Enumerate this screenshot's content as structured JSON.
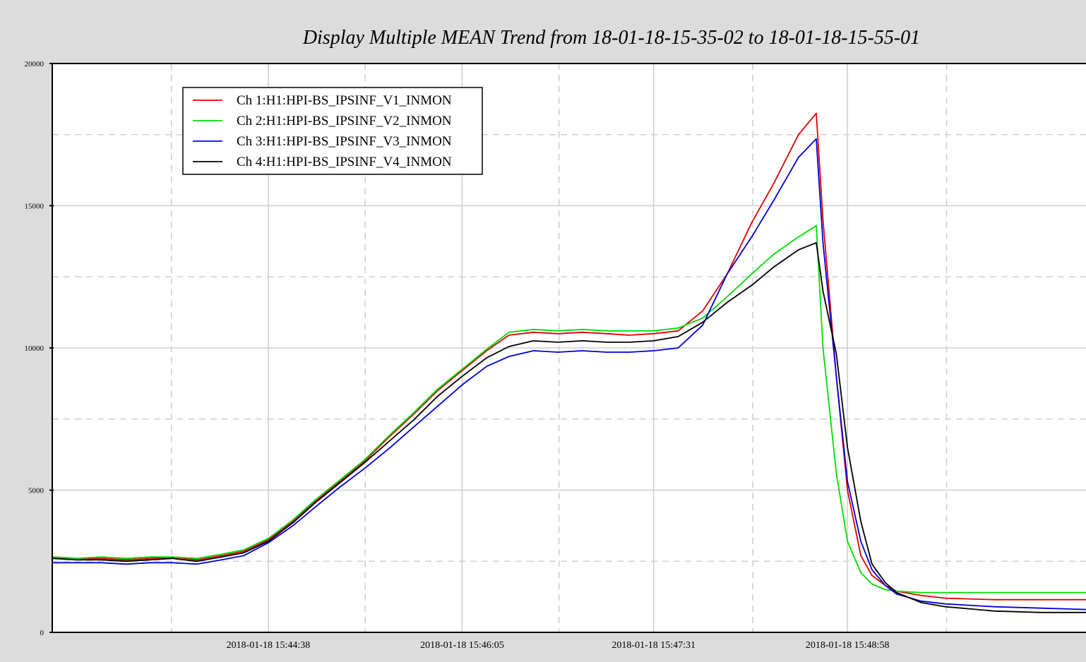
{
  "chart_data": {
    "type": "line",
    "title": "Display Multiple MEAN Trend from 18-01-18-15-35-02 to 18-01-18-15-55-01",
    "xlabel": "",
    "ylabel": "",
    "ylim": [
      0,
      20000
    ],
    "yticks": [
      0,
      5000,
      10000,
      15000,
      20000
    ],
    "xlim": [
      "2018-01-18 15:43:01",
      "2018-01-18 15:50:47"
    ],
    "xticks": [
      "2018-01-18 15:44:38",
      "2018-01-18 15:46:05",
      "2018-01-18 15:47:31",
      "2018-01-18 15:48:58"
    ],
    "grid": true,
    "legend_position": "top-left",
    "x": [
      "2018-01-18 15:43:01",
      "2018-01-18 15:43:12",
      "2018-01-18 15:43:23",
      "2018-01-18 15:43:34",
      "2018-01-18 15:43:45",
      "2018-01-18 15:43:55",
      "2018-01-18 15:44:06",
      "2018-01-18 15:44:17",
      "2018-01-18 15:44:27",
      "2018-01-18 15:44:38",
      "2018-01-18 15:44:49",
      "2018-01-18 15:44:59",
      "2018-01-18 15:45:10",
      "2018-01-18 15:45:21",
      "2018-01-18 15:45:32",
      "2018-01-18 15:45:43",
      "2018-01-18 15:45:54",
      "2018-01-18 15:46:05",
      "2018-01-18 15:46:16",
      "2018-01-18 15:46:26",
      "2018-01-18 15:46:37",
      "2018-01-18 15:46:48",
      "2018-01-18 15:46:59",
      "2018-01-18 15:47:10",
      "2018-01-18 15:47:20",
      "2018-01-18 15:47:31",
      "2018-01-18 15:47:42",
      "2018-01-18 15:47:53",
      "2018-01-18 15:48:04",
      "2018-01-18 15:48:15",
      "2018-01-18 15:48:25",
      "2018-01-18 15:48:36",
      "2018-01-18 15:48:44",
      "2018-01-18 15:48:47",
      "2018-01-18 15:48:53",
      "2018-01-18 15:48:58",
      "2018-01-18 15:49:04",
      "2018-01-18 15:49:09",
      "2018-01-18 15:49:15",
      "2018-01-18 15:49:20",
      "2018-01-18 15:49:31",
      "2018-01-18 15:49:42",
      "2018-01-18 15:50:04",
      "2018-01-18 15:50:25",
      "2018-01-18 15:50:47"
    ],
    "series": [
      {
        "name": "Ch 1:H1:HPI-BS_IPSINF_V1_INMON",
        "color": "#e00000",
        "values": [
          2650,
          2600,
          2600,
          2550,
          2600,
          2650,
          2550,
          2700,
          2850,
          3250,
          3900,
          4600,
          5300,
          6000,
          6850,
          7650,
          8500,
          9200,
          9900,
          10450,
          10550,
          10500,
          10550,
          10500,
          10450,
          10500,
          10600,
          11300,
          12600,
          14400,
          15800,
          17500,
          18250,
          14500,
          9000,
          5000,
          2700,
          2000,
          1650,
          1450,
          1300,
          1200,
          1150,
          1150,
          1150
        ]
      },
      {
        "name": "Ch 2:H1:HPI-BS_IPSINF_V2_INMON",
        "color": "#00dd00",
        "values": [
          2650,
          2600,
          2650,
          2600,
          2650,
          2650,
          2600,
          2750,
          2900,
          3300,
          3950,
          4650,
          5350,
          6050,
          6900,
          7700,
          8550,
          9250,
          9950,
          10550,
          10650,
          10600,
          10650,
          10600,
          10600,
          10600,
          10700,
          11050,
          11800,
          12600,
          13300,
          13900,
          14300,
          10000,
          5600,
          3200,
          2100,
          1700,
          1500,
          1450,
          1400,
          1400,
          1400,
          1400,
          1400
        ]
      },
      {
        "name": "Ch 3:H1:HPI-BS_IPSINF_V3_INMON",
        "color": "#0000dd",
        "values": [
          2450,
          2450,
          2450,
          2400,
          2450,
          2450,
          2400,
          2550,
          2700,
          3150,
          3750,
          4400,
          5100,
          5750,
          6450,
          7200,
          7950,
          8700,
          9350,
          9700,
          9900,
          9850,
          9900,
          9850,
          9850,
          9900,
          10000,
          10800,
          12600,
          13900,
          15200,
          16700,
          17350,
          13700,
          9000,
          5300,
          3200,
          2200,
          1650,
          1350,
          1100,
          1000,
          900,
          850,
          800
        ]
      },
      {
        "name": "Ch 4:H1:HPI-BS_IPSINF_V4_INMON",
        "color": "#000000",
        "values": [
          2600,
          2550,
          2550,
          2500,
          2550,
          2600,
          2500,
          2650,
          2800,
          3200,
          3850,
          4550,
          5250,
          5950,
          6700,
          7450,
          8300,
          9000,
          9650,
          10050,
          10250,
          10200,
          10250,
          10200,
          10200,
          10250,
          10400,
          10900,
          11600,
          12200,
          12850,
          13450,
          13700,
          12000,
          9800,
          6500,
          3900,
          2400,
          1750,
          1400,
          1050,
          900,
          750,
          700,
          700
        ]
      }
    ]
  }
}
